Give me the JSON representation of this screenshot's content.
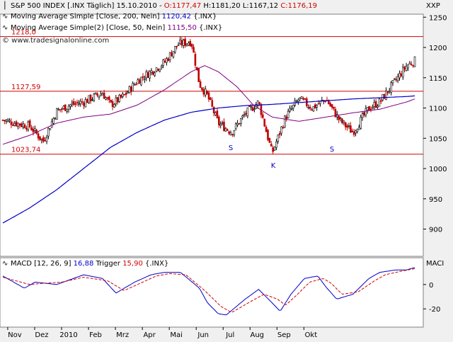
{
  "header": {
    "symbol": "S&P 500 INDEX [.INX",
    "period": "Täglich]",
    "date": "15.10.2010",
    "open": "O:1177,47",
    "high": "H:1181,20",
    "low": "L:1167,12",
    "close": "C:1176,19",
    "exchange": "XXP"
  },
  "indicators": {
    "ma200_label": "Moving Average Simple [Close, 200, Nein]",
    "ma200_value": "1120,42",
    "ma200_suffix": "{.INX}",
    "ma50_label": "Moving Average Simple(2) [Close, 50, Nein]",
    "ma50_value": "1115,50",
    "ma50_suffix": "{.INX}",
    "watermark": "© www.tradesignalonline.com",
    "macd_label": "MACD [12, 26, 9]",
    "macd_value": "16,88",
    "macd_trigger_label": "Trigger",
    "macd_trigger_value": "15,90",
    "macd_suffix": "{.INX}",
    "macd_axis_title": "MACI"
  },
  "colors": {
    "candle_up": "#000000",
    "candle_down": "#c00000",
    "ma200": "#0000c8",
    "ma50": "#800080",
    "levels": "#d00000",
    "macd": "#0000c8",
    "trigger": "#d00000"
  },
  "chart_data": [
    {
      "type": "candlestick",
      "yticks": [
        900,
        950,
        1000,
        1050,
        1100,
        1150,
        1200,
        1250
      ],
      "ylim": [
        855,
        1255
      ],
      "xticks": [
        "Nov",
        "Dez",
        "2010",
        "Feb",
        "Mrz",
        "Apr",
        "Mai",
        "Jun",
        "Jul",
        "Aug",
        "Sep",
        "Okt"
      ],
      "horizontal_lines": [
        {
          "value": 1218,
          "label": "1218,0"
        },
        {
          "value": 1127.59,
          "label": "1127,59"
        },
        {
          "value": 1023.74,
          "label": "1023,74"
        }
      ],
      "pattern_labels": [
        {
          "text": "S",
          "date_index": 14
        },
        {
          "text": "K",
          "date_index": 16
        },
        {
          "text": "S",
          "date_index": 18
        }
      ],
      "anchors": {
        "close": [
          [
            0,
            1080
          ],
          [
            1,
            1070
          ],
          [
            1.5,
            1045
          ],
          [
            2,
            1095
          ],
          [
            2.5,
            1105
          ],
          [
            3,
            1110
          ],
          [
            3.7,
            1125
          ],
          [
            4,
            1105
          ],
          [
            4.5,
            1120
          ],
          [
            5,
            1145
          ],
          [
            5.5,
            1160
          ],
          [
            6,
            1175
          ],
          [
            6.5,
            1205
          ],
          [
            7,
            1210
          ],
          [
            7.3,
            1140
          ],
          [
            7.6,
            1120
          ],
          [
            8,
            1075
          ],
          [
            8.5,
            1060
          ],
          [
            9,
            1090
          ],
          [
            9.5,
            1110
          ],
          [
            10,
            1025
          ],
          [
            10.5,
            1085
          ],
          [
            11,
            1115
          ],
          [
            11.5,
            1100
          ],
          [
            12,
            1115
          ],
          [
            12.5,
            1080
          ],
          [
            13,
            1060
          ],
          [
            13.6,
            1100
          ],
          [
            14,
            1110
          ],
          [
            14.5,
            1140
          ],
          [
            15,
            1170
          ],
          [
            15.3,
            1178
          ]
        ],
        "ma200": [
          [
            0,
            910
          ],
          [
            1,
            935
          ],
          [
            2,
            965
          ],
          [
            3,
            1000
          ],
          [
            4,
            1035
          ],
          [
            5,
            1060
          ],
          [
            6,
            1080
          ],
          [
            7,
            1093
          ],
          [
            8,
            1100
          ],
          [
            9,
            1104
          ],
          [
            10,
            1106
          ],
          [
            11,
            1109
          ],
          [
            12,
            1112
          ],
          [
            13,
            1115
          ],
          [
            14,
            1117
          ],
          [
            15,
            1119
          ],
          [
            15.3,
            1120
          ]
        ],
        "ma50": [
          [
            0,
            1040
          ],
          [
            1,
            1055
          ],
          [
            2,
            1075
          ],
          [
            3,
            1085
          ],
          [
            4,
            1090
          ],
          [
            5,
            1105
          ],
          [
            6,
            1130
          ],
          [
            7,
            1160
          ],
          [
            7.5,
            1170
          ],
          [
            8,
            1160
          ],
          [
            8.7,
            1135
          ],
          [
            9.3,
            1105
          ],
          [
            10,
            1085
          ],
          [
            11,
            1078
          ],
          [
            12,
            1085
          ],
          [
            13,
            1092
          ],
          [
            14,
            1098
          ],
          [
            15,
            1110
          ],
          [
            15.3,
            1115
          ]
        ]
      }
    },
    {
      "type": "line",
      "title": "MACD [12, 26, 9]",
      "yticks": [
        0,
        -20
      ],
      "ylim": [
        -35,
        22
      ],
      "series": [
        {
          "name": "MACD",
          "anchors": [
            [
              0,
              7
            ],
            [
              0.8,
              -3
            ],
            [
              1.2,
              2
            ],
            [
              2,
              0
            ],
            [
              3,
              8
            ],
            [
              3.7,
              5
            ],
            [
              4.2,
              -7
            ],
            [
              4.9,
              2
            ],
            [
              5.5,
              8
            ],
            [
              6,
              10
            ],
            [
              6.6,
              10
            ],
            [
              7.3,
              -3
            ],
            [
              7.6,
              -15
            ],
            [
              8,
              -24
            ],
            [
              8.3,
              -25
            ],
            [
              9,
              -12
            ],
            [
              9.5,
              -4
            ],
            [
              10,
              -15
            ],
            [
              10.3,
              -22
            ],
            [
              10.7,
              -8
            ],
            [
              11.2,
              5
            ],
            [
              11.7,
              7
            ],
            [
              12,
              -2
            ],
            [
              12.4,
              -12
            ],
            [
              13,
              -8
            ],
            [
              13.6,
              5
            ],
            [
              14,
              10
            ],
            [
              14.6,
              12
            ],
            [
              15,
              12
            ],
            [
              15.3,
              14
            ]
          ]
        },
        {
          "name": "Trigger",
          "anchors": [
            [
              0,
              6
            ],
            [
              1,
              0
            ],
            [
              1.5,
              1
            ],
            [
              2.2,
              2
            ],
            [
              3,
              6
            ],
            [
              3.9,
              3
            ],
            [
              4.5,
              -5
            ],
            [
              5.1,
              1
            ],
            [
              5.7,
              7
            ],
            [
              6.2,
              9
            ],
            [
              6.8,
              8
            ],
            [
              7.5,
              -5
            ],
            [
              8.1,
              -18
            ],
            [
              8.5,
              -23
            ],
            [
              9.2,
              -14
            ],
            [
              9.7,
              -8
            ],
            [
              10.2,
              -12
            ],
            [
              10.5,
              -17
            ],
            [
              10.9,
              -9
            ],
            [
              11.4,
              2
            ],
            [
              11.9,
              5
            ],
            [
              12.2,
              1
            ],
            [
              12.6,
              -8
            ],
            [
              13.2,
              -6
            ],
            [
              13.8,
              3
            ],
            [
              14.2,
              8
            ],
            [
              14.8,
              11
            ],
            [
              15.3,
              13
            ]
          ]
        }
      ]
    }
  ]
}
